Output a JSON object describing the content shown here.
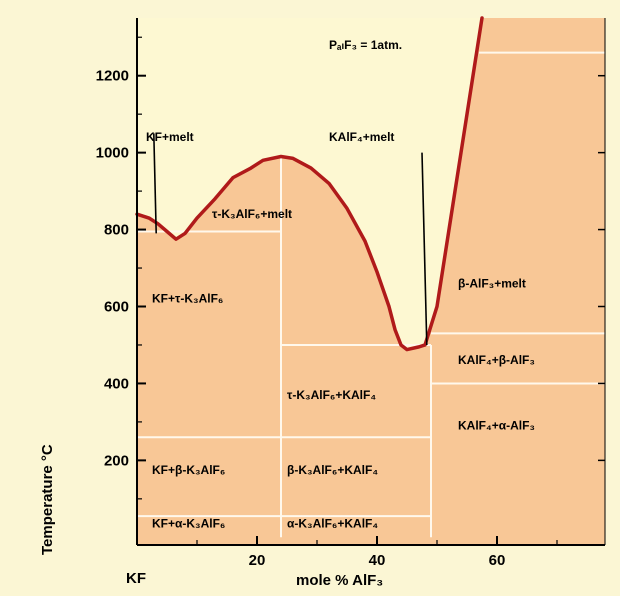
{
  "colors": {
    "background": "#fbf6d4",
    "plot_area": "#fdf8d2",
    "solid_region": "#f8c796",
    "boundary_lines": "#fff8ec",
    "liquidus_curve": "#b01a1a",
    "axes": "#000000"
  },
  "chart_data": {
    "type": "phase-diagram",
    "xlabel": "mole % AlF₃",
    "ylabel": "Temperature °C",
    "x_range": [
      0,
      78
    ],
    "y_range": [
      -20,
      1350
    ],
    "x_ticks": [
      {
        "value": 20,
        "label": "20"
      },
      {
        "value": 40,
        "label": "40"
      },
      {
        "value": 60,
        "label": "60"
      }
    ],
    "y_ticks": [
      {
        "value": 200,
        "label": "200"
      },
      {
        "value": 400,
        "label": "400"
      },
      {
        "value": 600,
        "label": "600"
      },
      {
        "value": 800,
        "label": "800"
      },
      {
        "value": 1000,
        "label": "1000"
      },
      {
        "value": 1200,
        "label": "1200"
      }
    ],
    "x_origin_label": "KF",
    "note": "PₐₗF₃ = 1atm.",
    "liquidus": [
      [
        0,
        840
      ],
      [
        2,
        830
      ],
      [
        3.5,
        815
      ],
      [
        5,
        795
      ],
      [
        6.5,
        775
      ],
      [
        8,
        790
      ],
      [
        10,
        830
      ],
      [
        13,
        880
      ],
      [
        16,
        935
      ],
      [
        19,
        960
      ],
      [
        21,
        980
      ],
      [
        24,
        990
      ],
      [
        26,
        985
      ],
      [
        29,
        960
      ],
      [
        32,
        920
      ],
      [
        35,
        855
      ],
      [
        38,
        770
      ],
      [
        40,
        690
      ],
      [
        42,
        600
      ],
      [
        43,
        540
      ],
      [
        44,
        500
      ],
      [
        45,
        488
      ],
      [
        47,
        495
      ],
      [
        48,
        500
      ],
      [
        50,
        600
      ],
      [
        52,
        800
      ],
      [
        54,
        1000
      ],
      [
        56,
        1200
      ],
      [
        57.5,
        1350
      ]
    ],
    "boundaries": [
      {
        "from": [
          0,
          795
        ],
        "to": [
          24,
          795
        ]
      },
      {
        "from": [
          24,
          0
        ],
        "to": [
          24,
          990
        ]
      },
      {
        "from": [
          24,
          500
        ],
        "to": [
          49,
          500
        ]
      },
      {
        "from": [
          49,
          0
        ],
        "to": [
          49,
          500
        ]
      },
      {
        "from": [
          0,
          260
        ],
        "to": [
          49,
          260
        ]
      },
      {
        "from": [
          0,
          55
        ],
        "to": [
          49,
          55
        ]
      },
      {
        "from": [
          49,
          530
        ],
        "to": [
          78,
          530
        ]
      },
      {
        "from": [
          49,
          400
        ],
        "to": [
          78,
          400
        ]
      },
      {
        "from": [
          57,
          1260
        ],
        "to": [
          78,
          1260
        ]
      }
    ],
    "pointers": [
      {
        "from": [
          2.8,
          1050
        ],
        "to": [
          3.2,
          790
        ]
      },
      {
        "from": [
          47.5,
          1000
        ],
        "to": [
          48.3,
          500
        ]
      }
    ],
    "regions": [
      {
        "label": "KF+melt",
        "x": 1.5,
        "y": 1030,
        "sub": ""
      },
      {
        "label": "KAlF₄+melt",
        "x": 32,
        "y": 1030,
        "sub": ""
      },
      {
        "label": "τ-K₃AlF₆+melt",
        "x": 12.5,
        "y": 830,
        "sub": ""
      },
      {
        "label": "KF+τ-K₃AlF₆",
        "x": 2.5,
        "y": 610,
        "sub": ""
      },
      {
        "label": "β-AlF₃+melt",
        "x": 53.5,
        "y": 650,
        "sub": ""
      },
      {
        "label": "KAlF₄+β-AlF₃",
        "x": 53.5,
        "y": 450,
        "sub": ""
      },
      {
        "label": "τ-K₃AlF₆+KAlF₄",
        "x": 25,
        "y": 360,
        "sub": ""
      },
      {
        "label": "KAlF₄+α-AlF₃",
        "x": 53.5,
        "y": 280,
        "sub": ""
      },
      {
        "label": "KF+β-K₃AlF₆",
        "x": 2.5,
        "y": 165,
        "sub": ""
      },
      {
        "label": "β-K₃AlF₆+KAlF₄",
        "x": 25,
        "y": 165,
        "sub": ""
      },
      {
        "label": "KF+α-K₃AlF₆",
        "x": 2.5,
        "y": 25,
        "sub": ""
      },
      {
        "label": "α-K₃AlF₆+KAlF₄",
        "x": 25,
        "y": 25,
        "sub": ""
      }
    ]
  }
}
